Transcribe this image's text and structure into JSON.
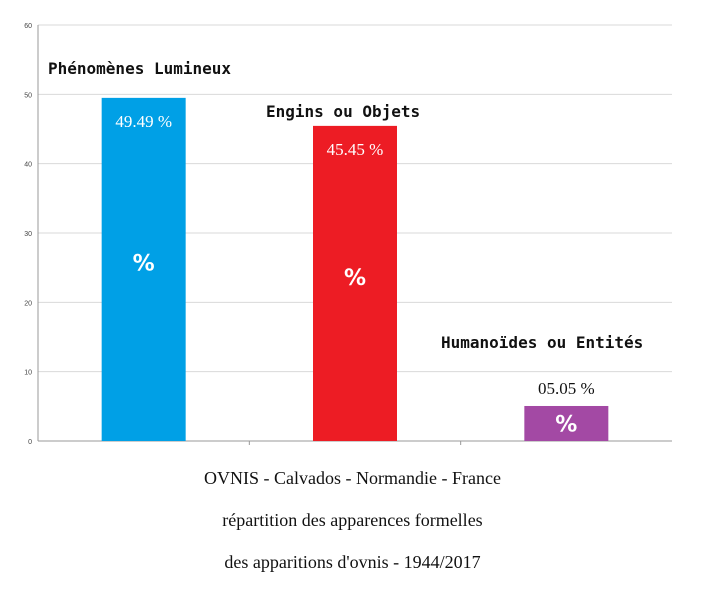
{
  "chart_data": {
    "type": "bar",
    "categories": [
      "Phénomènes Lumineux",
      "Engins ou Objets",
      "Humanoïdes ou Entités"
    ],
    "values": [
      49.49,
      45.45,
      5.05
    ],
    "value_labels": [
      "49.49 %",
      "45.45 %",
      "05.05 %"
    ],
    "bar_marks": [
      "%",
      "%",
      "%"
    ],
    "colors": [
      "#00a0e6",
      "#ed1c24",
      "#a349a4"
    ],
    "ylim": [
      0,
      60
    ],
    "yticks": [
      0,
      10,
      20,
      30,
      40,
      50,
      60
    ],
    "grid": true,
    "legend": "none",
    "xlabel": "",
    "ylabel": ""
  },
  "caption": {
    "line1": "OVNIS - Calvados - Normandie - France",
    "line2": "répartition des apparences formelles",
    "line3": "des apparitions d'ovnis - 1944/2017"
  }
}
